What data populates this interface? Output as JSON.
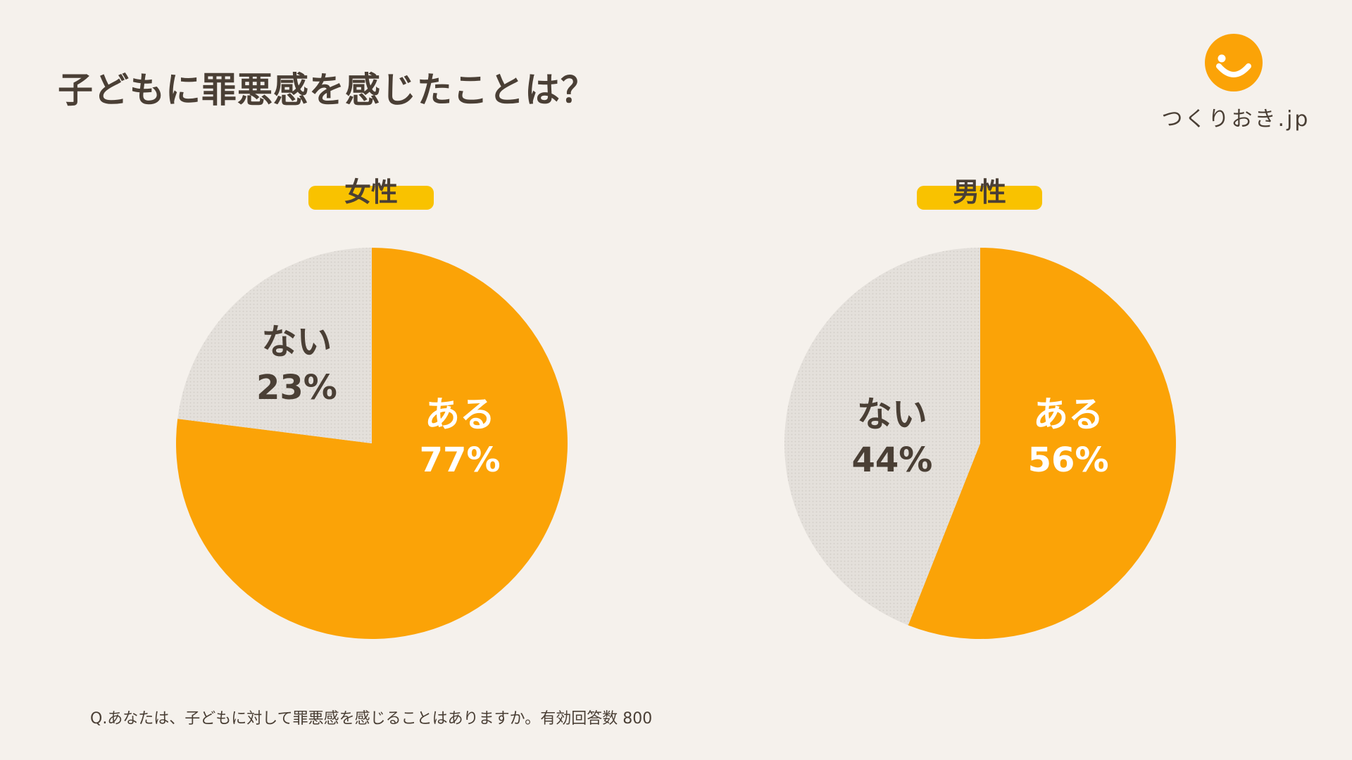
{
  "header": {
    "title": "子どもに罪悪感を感じたことは？"
  },
  "logo": {
    "text": "つくりおき.jp",
    "mark_icon": "smile-circle-icon"
  },
  "colors": {
    "background": "#f5f1ec",
    "accent_orange": "#fba307",
    "label_yellow": "#f9c200",
    "gray_slice": "#e4e0db",
    "dark_text": "#4a3f35",
    "white_text": "#ffffff"
  },
  "chart_data": [
    {
      "type": "pie",
      "title": "女性",
      "slices": [
        {
          "label": "ある",
          "value": 77,
          "display": "77%"
        },
        {
          "label": "ない",
          "value": 23,
          "display": "23%"
        }
      ]
    },
    {
      "type": "pie",
      "title": "男性",
      "slices": [
        {
          "label": "ある",
          "value": 56,
          "display": "56%"
        },
        {
          "label": "ない",
          "value": 44,
          "display": "44%"
        }
      ]
    }
  ],
  "footnote": {
    "text": "Q.あなたは、子どもに対して罪悪感を感じることはありますか。有効回答数 800"
  }
}
